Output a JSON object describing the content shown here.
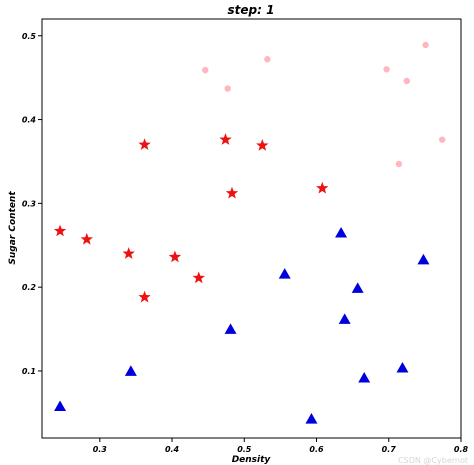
{
  "chart_data": {
    "type": "scatter",
    "title": "step: 1",
    "xlabel": "Density",
    "ylabel": "Sugar Content",
    "xlim": [
      0.22,
      0.8
    ],
    "ylim": [
      0.02,
      0.52
    ],
    "xticks": [
      0.3,
      0.4,
      0.5,
      0.6,
      0.7,
      0.8
    ],
    "xtick_labels": [
      "0.3",
      "0.4",
      "0.5",
      "0.6",
      "0.7",
      "0.8"
    ],
    "yticks": [
      0.1,
      0.2,
      0.3,
      0.4,
      0.5
    ],
    "ytick_labels": [
      "0.1",
      "0.2",
      "0.3",
      "0.4",
      "0.5"
    ],
    "grid": false,
    "series": [
      {
        "marker": "star",
        "color": "#ee1111",
        "points": [
          {
            "x": 0.245,
            "y": 0.267
          },
          {
            "x": 0.282,
            "y": 0.257
          },
          {
            "x": 0.34,
            "y": 0.24
          },
          {
            "x": 0.362,
            "y": 0.188
          },
          {
            "x": 0.362,
            "y": 0.37
          },
          {
            "x": 0.404,
            "y": 0.236
          },
          {
            "x": 0.437,
            "y": 0.211
          },
          {
            "x": 0.474,
            "y": 0.376
          },
          {
            "x": 0.483,
            "y": 0.312
          },
          {
            "x": 0.525,
            "y": 0.369
          },
          {
            "x": 0.608,
            "y": 0.318
          }
        ]
      },
      {
        "marker": "triangle",
        "color": "#0000dd",
        "points": [
          {
            "x": 0.245,
            "y": 0.057
          },
          {
            "x": 0.343,
            "y": 0.099
          },
          {
            "x": 0.481,
            "y": 0.149
          },
          {
            "x": 0.556,
            "y": 0.215
          },
          {
            "x": 0.593,
            "y": 0.042
          },
          {
            "x": 0.634,
            "y": 0.264
          },
          {
            "x": 0.639,
            "y": 0.161
          },
          {
            "x": 0.657,
            "y": 0.198
          },
          {
            "x": 0.666,
            "y": 0.091
          },
          {
            "x": 0.719,
            "y": 0.103
          },
          {
            "x": 0.748,
            "y": 0.232
          }
        ]
      },
      {
        "marker": "circle",
        "color": "#ffb6c1",
        "points": [
          {
            "x": 0.446,
            "y": 0.459
          },
          {
            "x": 0.477,
            "y": 0.437
          },
          {
            "x": 0.532,
            "y": 0.472
          },
          {
            "x": 0.697,
            "y": 0.46
          },
          {
            "x": 0.714,
            "y": 0.347
          },
          {
            "x": 0.725,
            "y": 0.446
          },
          {
            "x": 0.751,
            "y": 0.489
          },
          {
            "x": 0.774,
            "y": 0.376
          }
        ]
      }
    ]
  },
  "watermark": "CSDN @Cybernot"
}
